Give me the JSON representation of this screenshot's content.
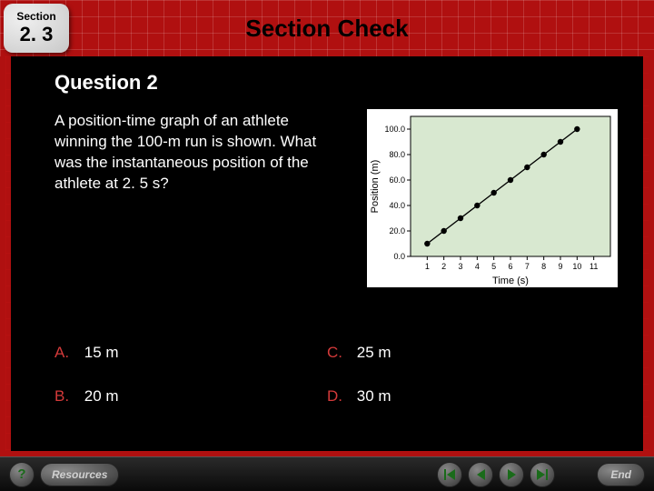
{
  "header": {
    "section_label": "Section",
    "section_number": "2. 3",
    "title": "Section Check"
  },
  "question": {
    "title": "Question 2",
    "text": "A position-time graph of an athlete winning the 100-m run is shown. What was the instantaneous position of the athlete at 2. 5 s?"
  },
  "answers": [
    {
      "letter": "A.",
      "text": "15 m"
    },
    {
      "letter": "B.",
      "text": "20 m"
    },
    {
      "letter": "C.",
      "text": "25 m"
    },
    {
      "letter": "D.",
      "text": "30 m"
    }
  ],
  "chart": {
    "type": "scatter-line",
    "xlabel": "Time (s)",
    "ylabel": "Position (m)",
    "x_ticks": [
      1,
      2,
      3,
      4,
      5,
      6,
      7,
      8,
      9,
      10,
      11
    ],
    "y_ticks": [
      0.0,
      20.0,
      40.0,
      60.0,
      80.0,
      100.0
    ],
    "y_tick_labels": [
      "0.0",
      "20.0",
      "40.0",
      "60.0",
      "80.0",
      "100.0"
    ],
    "xlim": [
      0,
      12
    ],
    "ylim": [
      0,
      110
    ],
    "points": [
      {
        "x": 1,
        "y": 10
      },
      {
        "x": 2,
        "y": 20
      },
      {
        "x": 3,
        "y": 30
      },
      {
        "x": 4,
        "y": 40
      },
      {
        "x": 5,
        "y": 50
      },
      {
        "x": 6,
        "y": 60
      },
      {
        "x": 7,
        "y": 70
      },
      {
        "x": 8,
        "y": 80
      },
      {
        "x": 9,
        "y": 90
      },
      {
        "x": 10,
        "y": 100
      }
    ],
    "line_color": "#000000",
    "marker_color": "#000000",
    "marker_radius": 3.2,
    "line_width": 1.4,
    "background_color": "#ffffff",
    "plot_bg": "#d8e8d0",
    "axis_color": "#000000",
    "tick_fontsize": 9,
    "label_fontsize": 11
  },
  "footer": {
    "help": "?",
    "resources": "Resources",
    "end": "End"
  },
  "colors": {
    "red": "#b01010",
    "answer_letter": "#d43a3a",
    "nav_green": "#1a6b1a"
  }
}
